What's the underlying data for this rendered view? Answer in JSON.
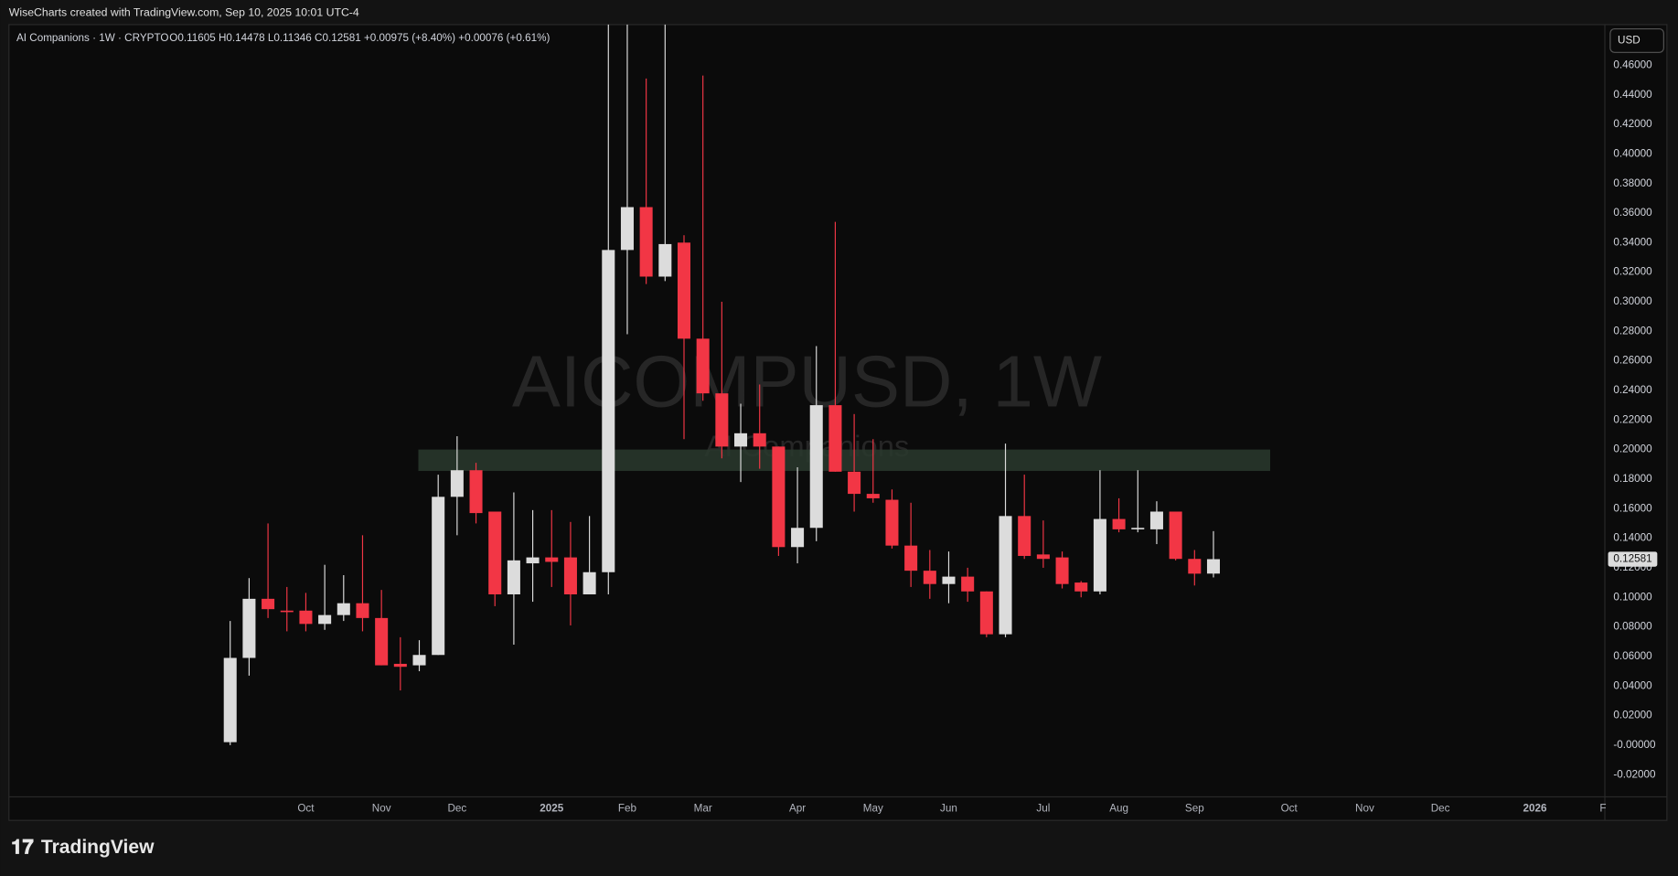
{
  "header": "WiseCharts created with TradingView.com, Sep 10, 2025 10:01 UTC-4",
  "footer": "TradingView",
  "chart_data": {
    "type": "candlestick",
    "symbol_title": "AI Companions · 1W · CRYPTO",
    "legend_values": "O0.11605  H0.14478  L0.11346  C0.12581  +0.00975 (+8.40%)  +0.00076 (+0.61%)",
    "watermark": "AICOMPUSD, 1W",
    "watermark_subtitle": "AI Companions",
    "currency": "USD",
    "up_color": "#dcdcdc",
    "down_color": "#f23645",
    "grid": false,
    "open": [
      0.002,
      0.059,
      0.099,
      0.091,
      0.091,
      0.082,
      0.088,
      0.096,
      0.086,
      0.055,
      0.054,
      0.061,
      0.168,
      0.186,
      0.158,
      0.102,
      0.123,
      0.127,
      0.127,
      0.102,
      0.117,
      0.335,
      0.364,
      0.317,
      0.34,
      0.275,
      0.238,
      0.202,
      0.211,
      0.202,
      0.134,
      0.147,
      0.23,
      0.185,
      0.17,
      0.166,
      0.135,
      0.118,
      0.109,
      0.114,
      0.104,
      0.075,
      0.155,
      0.129,
      0.127,
      0.11,
      0.104,
      0.153,
      0.146,
      0.146,
      0.158,
      0.126,
      0.11605
    ],
    "high": [
      0.084,
      0.113,
      0.15,
      0.107,
      0.103,
      0.122,
      0.115,
      0.142,
      0.105,
      0.073,
      0.071,
      0.183,
      0.209,
      0.191,
      0.158,
      0.171,
      0.159,
      0.159,
      0.151,
      0.155,
      0.52,
      0.55,
      0.451,
      0.5,
      0.345,
      0.453,
      0.3,
      0.231,
      0.244,
      0.202,
      0.188,
      0.27,
      0.354,
      0.224,
      0.207,
      0.173,
      0.164,
      0.132,
      0.131,
      0.12,
      0.104,
      0.204,
      0.183,
      0.152,
      0.131,
      0.111,
      0.186,
      0.167,
      0.186,
      0.165,
      0.158,
      0.132,
      0.14478
    ],
    "low": [
      0.0,
      0.047,
      0.086,
      0.077,
      0.077,
      0.078,
      0.084,
      0.077,
      0.054,
      0.037,
      0.05,
      0.061,
      0.142,
      0.15,
      0.094,
      0.068,
      0.097,
      0.107,
      0.081,
      0.102,
      0.102,
      0.278,
      0.312,
      0.314,
      0.207,
      0.233,
      0.194,
      0.178,
      0.187,
      0.128,
      0.123,
      0.138,
      0.185,
      0.158,
      0.164,
      0.133,
      0.107,
      0.099,
      0.096,
      0.097,
      0.073,
      0.073,
      0.126,
      0.12,
      0.106,
      0.1,
      0.102,
      0.144,
      0.144,
      0.136,
      0.125,
      0.108,
      0.11346
    ],
    "close": [
      0.059,
      0.099,
      0.092,
      0.09,
      0.082,
      0.088,
      0.096,
      0.086,
      0.054,
      0.053,
      0.061,
      0.168,
      0.186,
      0.157,
      0.102,
      0.125,
      0.127,
      0.124,
      0.102,
      0.117,
      0.335,
      0.364,
      0.317,
      0.339,
      0.275,
      0.238,
      0.202,
      0.211,
      0.202,
      0.134,
      0.147,
      0.23,
      0.185,
      0.17,
      0.167,
      0.135,
      0.118,
      0.109,
      0.114,
      0.104,
      0.075,
      0.155,
      0.128,
      0.126,
      0.109,
      0.104,
      0.153,
      0.146,
      0.147,
      0.158,
      0.126,
      0.116,
      0.12581
    ],
    "last_price": {
      "value": 0.12581,
      "label": "0.12581"
    },
    "zone": {
      "color": "#2a3a2e",
      "x": [
        9.95,
        55
      ],
      "y": [
        0.1855,
        0.2
      ]
    },
    "xlim": [
      -11.7,
      72.7
    ],
    "xticks": [
      {
        "value": 4,
        "label": "Oct"
      },
      {
        "value": 8,
        "label": "Nov"
      },
      {
        "value": 12,
        "label": "Dec"
      },
      {
        "value": 17,
        "label": "2025"
      },
      {
        "value": 21,
        "label": "Feb"
      },
      {
        "value": 25,
        "label": "Mar"
      },
      {
        "value": 30,
        "label": "Apr"
      },
      {
        "value": 34,
        "label": "May"
      },
      {
        "value": 38,
        "label": "Jun"
      },
      {
        "value": 43,
        "label": "Jul"
      },
      {
        "value": 47,
        "label": "Aug"
      },
      {
        "value": 51,
        "label": "Sep"
      },
      {
        "value": 56,
        "label": "Oct"
      },
      {
        "value": 60,
        "label": "Nov"
      },
      {
        "value": 64,
        "label": "Dec"
      },
      {
        "value": 69,
        "label": "2026"
      },
      {
        "value": 72.6,
        "label": "F"
      }
    ],
    "ylim": [
      -0.035,
      0.4875
    ],
    "yticks": [
      {
        "value": 0.46,
        "label": "0.46000"
      },
      {
        "value": 0.44,
        "label": "0.44000"
      },
      {
        "value": 0.42,
        "label": "0.42000"
      },
      {
        "value": 0.4,
        "label": "0.40000"
      },
      {
        "value": 0.38,
        "label": "0.38000"
      },
      {
        "value": 0.36,
        "label": "0.36000"
      },
      {
        "value": 0.34,
        "label": "0.34000"
      },
      {
        "value": 0.32,
        "label": "0.32000"
      },
      {
        "value": 0.3,
        "label": "0.30000"
      },
      {
        "value": 0.28,
        "label": "0.28000"
      },
      {
        "value": 0.26,
        "label": "0.26000"
      },
      {
        "value": 0.24,
        "label": "0.24000"
      },
      {
        "value": 0.22,
        "label": "0.22000"
      },
      {
        "value": 0.2,
        "label": "0.20000"
      },
      {
        "value": 0.18,
        "label": "0.18000"
      },
      {
        "value": 0.16,
        "label": "0.16000"
      },
      {
        "value": 0.14,
        "label": "0.14000"
      },
      {
        "value": 0.12,
        "label": "0.12000"
      },
      {
        "value": 0.1,
        "label": "0.10000"
      },
      {
        "value": 0.08,
        "label": "0.08000"
      },
      {
        "value": 0.06,
        "label": "0.06000"
      },
      {
        "value": 0.04,
        "label": "0.04000"
      },
      {
        "value": 0.02,
        "label": "0.02000"
      },
      {
        "value": 0,
        "label": "-0.00000"
      },
      {
        "value": -0.02,
        "label": "-0.02000"
      }
    ]
  }
}
